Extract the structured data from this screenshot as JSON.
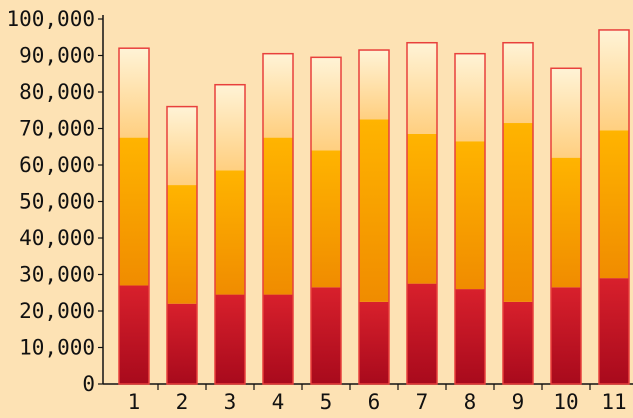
{
  "chart_data": {
    "type": "bar",
    "stacked": true,
    "categories": [
      "1",
      "2",
      "3",
      "4",
      "5",
      "6",
      "7",
      "8",
      "9",
      "10",
      "11"
    ],
    "series": [
      {
        "values": [
          27000,
          22000,
          24500,
          24500,
          26500,
          22500,
          27500,
          26000,
          22500,
          26500,
          29000
        ]
      },
      {
        "values": [
          40500,
          32500,
          34000,
          43000,
          37500,
          50000,
          41000,
          40500,
          49000,
          35500,
          40500
        ]
      },
      {
        "values": [
          24500,
          21500,
          23500,
          23000,
          25500,
          19000,
          25000,
          24000,
          22000,
          24500,
          27500
        ]
      }
    ],
    "totals": [
      92000,
      76000,
      82000,
      90500,
      89500,
      91500,
      93500,
      90500,
      93500,
      86500,
      97000
    ],
    "y_ticks": [
      "0",
      "10,000",
      "20,000",
      "30,000",
      "40,000",
      "50,000",
      "60,000",
      "70,000",
      "80,000",
      "90,000",
      "100,000"
    ],
    "ylim": [
      0,
      100000
    ],
    "title": "",
    "xlabel": "",
    "ylabel": "",
    "grid": false,
    "legend": "none",
    "colors": {
      "bottom_top": "#d8202c",
      "bottom_bottom": "#a80a1c",
      "middle_top": "#ffb400",
      "middle_bottom": "#f08c00",
      "upper_top": "#fff3d6",
      "upper_bottom": "#ffcf80",
      "outline": "#e8403c",
      "axis": "#111111",
      "background": "#fde2b4"
    }
  }
}
